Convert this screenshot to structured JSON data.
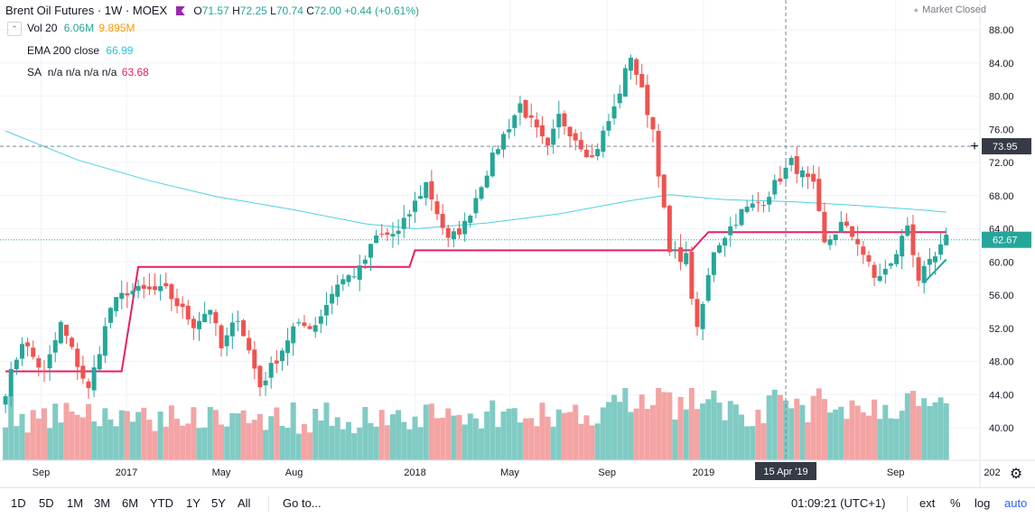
{
  "header": {
    "title": "Brent Oil Futures · 1W · MOEX",
    "o_label": "O",
    "o": "71.57",
    "h_label": "H",
    "h": "72.25",
    "l_label": "L",
    "l": "70.74",
    "c_label": "C",
    "c": "72.00",
    "change": "+0.44 (+0.61%)",
    "market_status": "Market Closed"
  },
  "indicators": {
    "vol": {
      "name": "Vol 20",
      "v1": "6.06M",
      "v2": "9.895M"
    },
    "ema": {
      "name": "EMA 200 close",
      "value": "66.99"
    },
    "sa": {
      "name": "SA",
      "params": "n/a n/a n/a n/a",
      "value": "63.68"
    }
  },
  "price_axis": {
    "ticks": [
      "88.00",
      "84.00",
      "80.00",
      "76.00",
      "72.00",
      "68.00",
      "64.00",
      "60.00",
      "56.00",
      "52.00",
      "48.00",
      "44.00",
      "40.00"
    ],
    "crosshair_label": "73.95",
    "last_price_label": "62.67"
  },
  "time_axis": {
    "ticks": [
      "Sep",
      "2017",
      "May",
      "Aug",
      "2018",
      "May",
      "Sep",
      "2019",
      "Sep",
      "202"
    ],
    "crosshair_label": "15 Apr '19"
  },
  "toolbar": {
    "ranges": [
      "1D",
      "5D",
      "1M",
      "3M",
      "6M",
      "YTD",
      "1Y",
      "5Y",
      "All"
    ],
    "goto": "Go to...",
    "clock": "01:09:21 (UTC+1)",
    "ext": "ext",
    "percent": "%",
    "log": "log",
    "auto": "auto"
  },
  "colors": {
    "up": "#26a69a",
    "down": "#ef5350",
    "ema": "#4dd0e1",
    "sa": "#e91e63",
    "up_vol": "#80cbc4",
    "down_vol": "#f4a4a4"
  },
  "chart_data": {
    "type": "candlestick",
    "title": "Brent Oil Futures · 1W · MOEX",
    "x_range": [
      "2016-09",
      "2019-11"
    ],
    "y_range": [
      38,
      90
    ],
    "crosshair_price": 73.95,
    "crosshair_date": "2019-04-15",
    "last_price": 62.67,
    "anchors": [
      [
        "2016-08-01",
        44.5
      ],
      [
        "2016-08-22",
        50.5
      ],
      [
        "2016-09-19",
        46.5
      ],
      [
        "2016-10-10",
        52.5
      ],
      [
        "2016-11-14",
        44.5
      ],
      [
        "2016-12-12",
        54.5
      ],
      [
        "2017-01-02",
        56.5
      ],
      [
        "2017-02-20",
        56.5
      ],
      [
        "2017-03-27",
        52.5
      ],
      [
        "2017-04-17",
        54.5
      ],
      [
        "2017-05-01",
        49.5
      ],
      [
        "2017-05-22",
        53.5
      ],
      [
        "2017-06-19",
        45.0
      ],
      [
        "2017-07-17",
        49.5
      ],
      [
        "2017-07-31",
        52.0
      ],
      [
        "2017-08-28",
        52.5
      ],
      [
        "2017-09-25",
        57.5
      ],
      [
        "2017-10-23",
        59.0
      ],
      [
        "2017-11-13",
        63.0
      ],
      [
        "2017-12-11",
        63.5
      ],
      [
        "2018-01-15",
        69.5
      ],
      [
        "2018-02-12",
        62.5
      ],
      [
        "2018-03-05",
        64.5
      ],
      [
        "2018-03-26",
        69.5
      ],
      [
        "2018-04-16",
        74.0
      ],
      [
        "2018-05-14",
        79.0
      ],
      [
        "2018-06-18",
        73.5
      ],
      [
        "2018-07-02",
        77.5
      ],
      [
        "2018-08-13",
        72.5
      ],
      [
        "2018-09-10",
        78.5
      ],
      [
        "2018-10-01",
        85.0
      ],
      [
        "2018-10-29",
        76.0
      ],
      [
        "2018-11-19",
        61.0
      ],
      [
        "2018-12-10",
        60.5
      ],
      [
        "2018-12-24",
        51.5
      ],
      [
        "2019-01-14",
        61.5
      ],
      [
        "2019-02-18",
        66.0
      ],
      [
        "2019-03-18",
        67.5
      ],
      [
        "2019-04-22",
        72.0
      ],
      [
        "2019-05-20",
        69.0
      ],
      [
        "2019-06-03",
        62.0
      ],
      [
        "2019-06-24",
        64.5
      ],
      [
        "2019-07-15",
        62.5
      ],
      [
        "2019-08-05",
        58.0
      ],
      [
        "2019-08-26",
        59.5
      ],
      [
        "2019-09-16",
        64.5
      ],
      [
        "2019-09-30",
        58.0
      ],
      [
        "2019-10-21",
        60.5
      ],
      [
        "2019-11-04",
        62.7
      ]
    ],
    "ema200": [
      [
        "2016-08-01",
        75.8
      ],
      [
        "2016-10-31",
        72.3
      ],
      [
        "2017-01-30",
        69.8
      ],
      [
        "2017-04-24",
        67.9
      ],
      [
        "2017-07-31",
        66.3
      ],
      [
        "2017-10-30",
        64.6
      ],
      [
        "2018-01-01",
        64.0
      ],
      [
        "2018-04-02",
        64.7
      ],
      [
        "2018-07-02",
        65.8
      ],
      [
        "2018-10-01",
        67.4
      ],
      [
        "2018-11-19",
        68.1
      ],
      [
        "2019-01-28",
        67.5
      ],
      [
        "2019-04-15",
        67.3
      ],
      [
        "2019-07-01",
        66.9
      ],
      [
        "2019-09-30",
        66.3
      ],
      [
        "2019-11-04",
        66.0
      ]
    ],
    "sa": [
      [
        "2016-08-01",
        46.8
      ],
      [
        "2016-12-26",
        46.8
      ],
      [
        "2017-01-16",
        59.4
      ],
      [
        "2017-12-25",
        59.4
      ],
      [
        "2018-01-01",
        61.4
      ],
      [
        "2018-12-17",
        61.4
      ],
      [
        "2019-01-07",
        63.6
      ],
      [
        "2019-11-04",
        63.6
      ]
    ],
    "trendline": [
      [
        "2019-10-07",
        57.5
      ],
      [
        "2019-11-04",
        60.3
      ]
    ]
  }
}
